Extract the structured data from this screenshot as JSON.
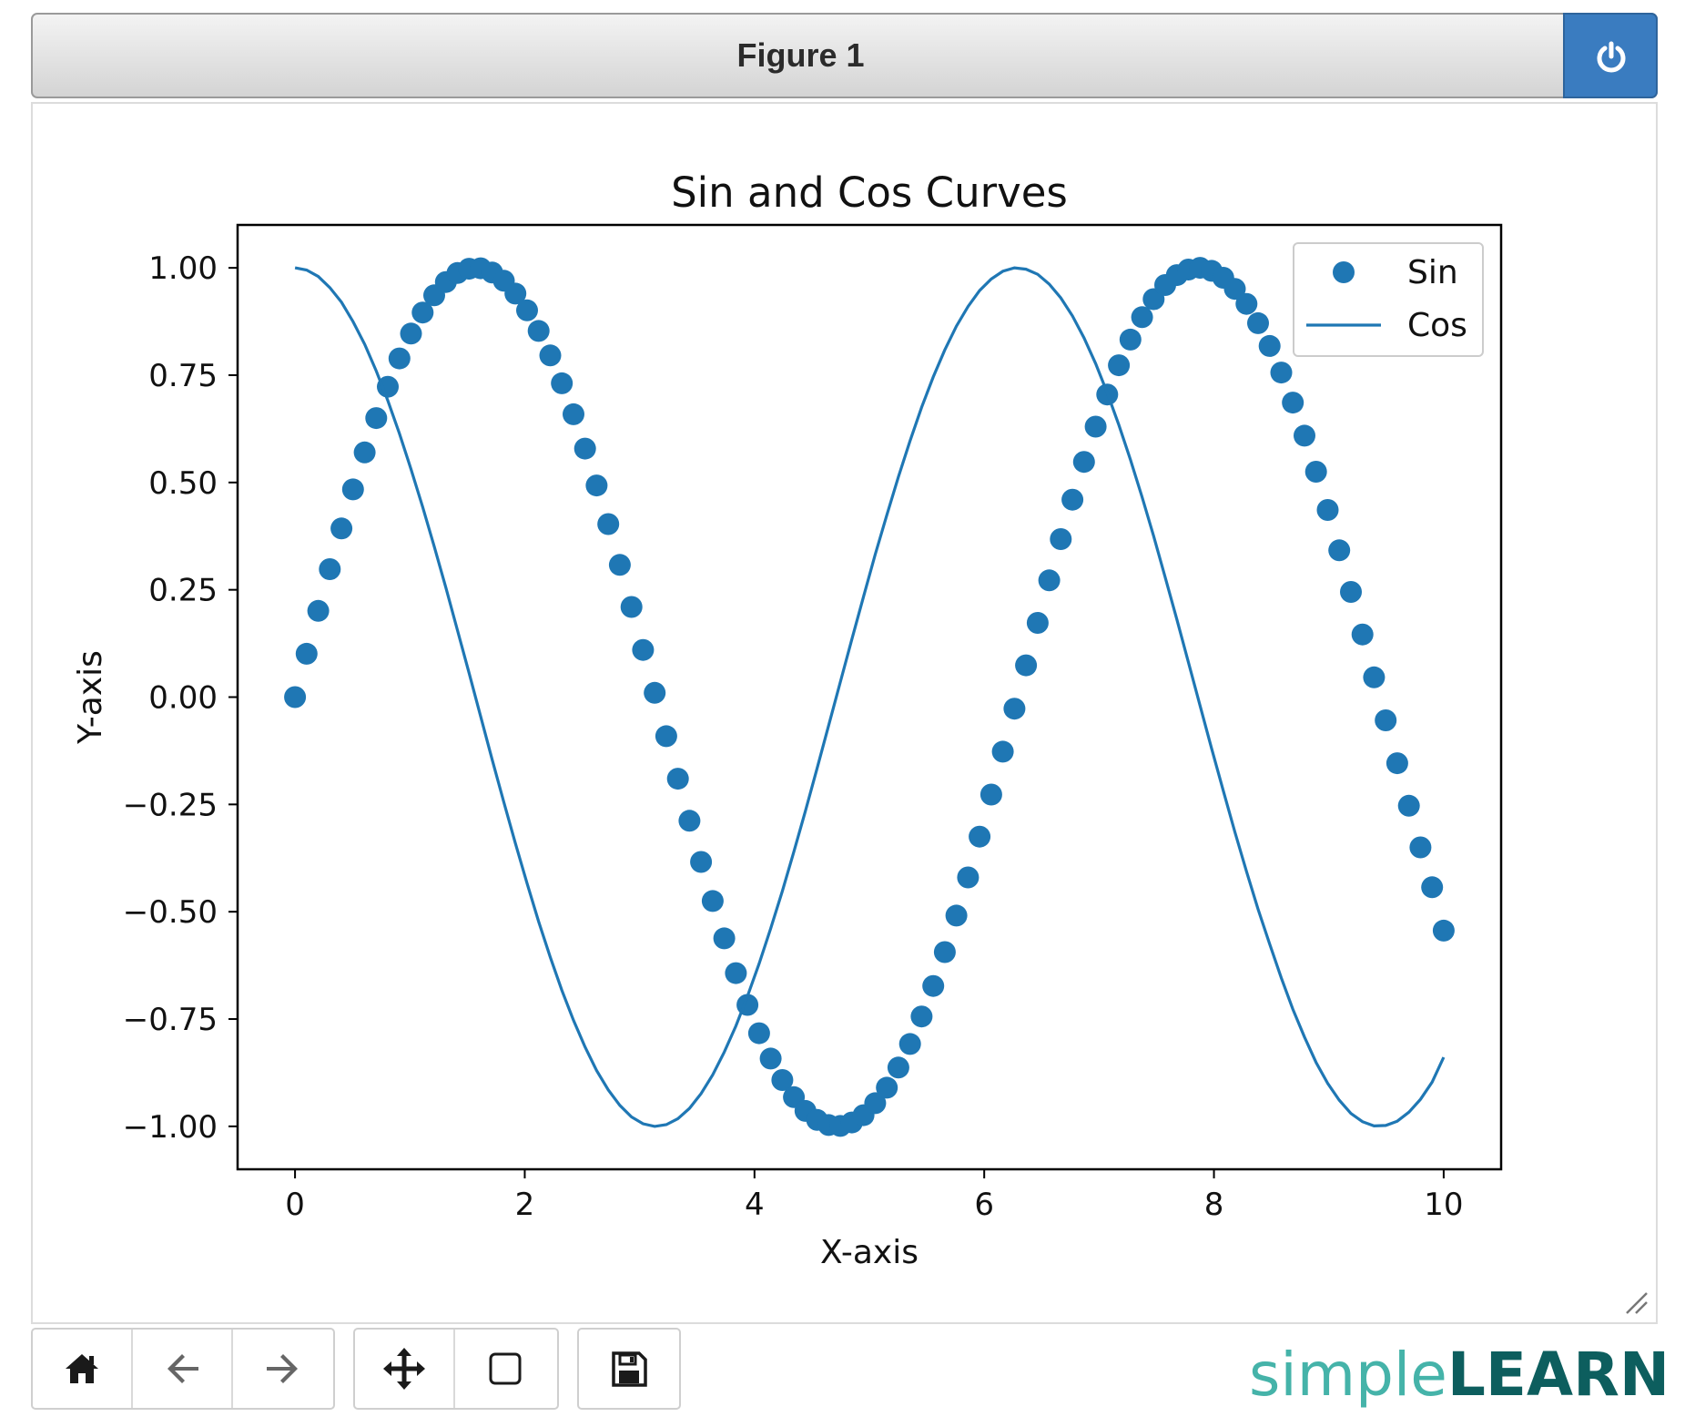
{
  "window": {
    "title": "Figure 1",
    "accent_color": "#3a7cc0",
    "power_icon": "power-icon"
  },
  "toolbar": {
    "buttons": [
      {
        "name": "home",
        "icon": "home-icon"
      },
      {
        "name": "back",
        "icon": "arrow-left-icon"
      },
      {
        "name": "forward",
        "icon": "arrow-right-icon"
      },
      {
        "name": "pan",
        "icon": "move-icon"
      },
      {
        "name": "zoom",
        "icon": "zoom-rect-icon"
      },
      {
        "name": "save",
        "icon": "save-icon"
      }
    ]
  },
  "brand": {
    "part1": "simple",
    "part2": "LEARN",
    "color1": "#45b3a9",
    "color2": "#0d5e5e"
  },
  "chart_data": {
    "type": "scatter",
    "title": "Sin and Cos Curves",
    "xlabel": "X-axis",
    "ylabel": "Y-axis",
    "xlim": [
      -0.5,
      10.5
    ],
    "ylim": [
      -1.1,
      1.1
    ],
    "xticks": [
      0,
      2,
      4,
      6,
      8,
      10
    ],
    "xtick_labels": [
      "0",
      "2",
      "4",
      "6",
      "8",
      "10"
    ],
    "yticks": [
      1.0,
      0.75,
      0.5,
      0.25,
      0.0,
      -0.25,
      -0.5,
      -0.75,
      -1.0
    ],
    "ytick_labels": [
      "1.00",
      "0.75",
      "0.50",
      "0.25",
      "0.00",
      "−0.25",
      "−0.50",
      "−0.75",
      "−1.00"
    ],
    "grid": false,
    "legend": "top-right",
    "x": [
      0.0,
      0.101,
      0.202,
      0.303,
      0.404,
      0.505,
      0.606,
      0.707,
      0.808,
      0.909,
      1.01,
      1.111,
      1.212,
      1.313,
      1.414,
      1.515,
      1.616,
      1.717,
      1.818,
      1.919,
      2.02,
      2.121,
      2.222,
      2.323,
      2.424,
      2.525,
      2.626,
      2.727,
      2.828,
      2.929,
      3.03,
      3.131,
      3.232,
      3.333,
      3.434,
      3.535,
      3.636,
      3.737,
      3.838,
      3.939,
      4.04,
      4.141,
      4.242,
      4.343,
      4.444,
      4.545,
      4.646,
      4.747,
      4.848,
      4.949,
      5.051,
      5.152,
      5.253,
      5.354,
      5.455,
      5.556,
      5.657,
      5.758,
      5.859,
      5.96,
      6.061,
      6.162,
      6.263,
      6.364,
      6.465,
      6.566,
      6.667,
      6.768,
      6.869,
      6.97,
      7.071,
      7.172,
      7.273,
      7.374,
      7.475,
      7.576,
      7.677,
      7.778,
      7.879,
      7.98,
      8.081,
      8.182,
      8.283,
      8.384,
      8.485,
      8.586,
      8.687,
      8.788,
      8.889,
      8.99,
      9.091,
      9.192,
      9.293,
      9.394,
      9.495,
      9.596,
      9.697,
      9.798,
      9.899,
      10.0
    ],
    "series": [
      {
        "name": "Sin",
        "style": "markers",
        "color": "#1f77b4",
        "values": [
          0.0,
          0.101,
          0.201,
          0.298,
          0.393,
          0.484,
          0.57,
          0.65,
          0.723,
          0.789,
          0.847,
          0.896,
          0.936,
          0.967,
          0.988,
          0.998,
          0.999,
          0.989,
          0.97,
          0.94,
          0.901,
          0.853,
          0.796,
          0.731,
          0.659,
          0.579,
          0.493,
          0.403,
          0.308,
          0.21,
          0.11,
          0.01,
          -0.091,
          -0.19,
          -0.288,
          -0.384,
          -0.475,
          -0.562,
          -0.643,
          -0.717,
          -0.783,
          -0.842,
          -0.892,
          -0.932,
          -0.964,
          -0.985,
          -0.997,
          -0.999,
          -0.991,
          -0.974,
          -0.946,
          -0.91,
          -0.863,
          -0.808,
          -0.744,
          -0.673,
          -0.594,
          -0.509,
          -0.42,
          -0.325,
          -0.227,
          -0.127,
          -0.027,
          0.074,
          0.173,
          0.272,
          0.368,
          0.46,
          0.548,
          0.63,
          0.705,
          0.773,
          0.833,
          0.885,
          0.927,
          0.96,
          0.983,
          0.996,
          1.0,
          0.993,
          0.977,
          0.951,
          0.916,
          0.871,
          0.818,
          0.756,
          0.686,
          0.609,
          0.525,
          0.436,
          0.342,
          0.245,
          0.146,
          0.046,
          -0.054,
          -0.154,
          -0.253,
          -0.35,
          -0.443,
          -0.544
        ]
      },
      {
        "name": "Cos",
        "style": "line",
        "color": "#1f77b4",
        "values": [
          1.0,
          0.995,
          0.98,
          0.954,
          0.92,
          0.875,
          0.822,
          0.76,
          0.691,
          0.614,
          0.531,
          0.443,
          0.351,
          0.255,
          0.156,
          0.056,
          -0.045,
          -0.146,
          -0.245,
          -0.341,
          -0.434,
          -0.523,
          -0.606,
          -0.683,
          -0.753,
          -0.815,
          -0.87,
          -0.915,
          -0.951,
          -0.978,
          -0.994,
          -1.0,
          -0.996,
          -0.982,
          -0.958,
          -0.924,
          -0.88,
          -0.827,
          -0.766,
          -0.697,
          -0.621,
          -0.539,
          -0.452,
          -0.36,
          -0.265,
          -0.166,
          -0.066,
          0.035,
          0.135,
          0.234,
          0.332,
          0.424,
          0.513,
          0.597,
          0.675,
          0.746,
          0.809,
          0.864,
          0.91,
          0.947,
          0.974,
          0.992,
          1.0,
          0.997,
          0.985,
          0.962,
          0.93,
          0.888,
          0.837,
          0.777,
          0.709,
          0.634,
          0.553,
          0.466,
          0.375,
          0.279,
          0.181,
          0.081,
          -0.02,
          -0.12,
          -0.218,
          -0.314,
          -0.406,
          -0.494,
          -0.575,
          -0.654,
          -0.727,
          -0.792,
          -0.851,
          -0.9,
          -0.939,
          -0.97,
          -0.989,
          -0.999,
          -0.998,
          -0.988,
          -0.967,
          -0.937,
          -0.897,
          -0.839
        ]
      }
    ]
  }
}
